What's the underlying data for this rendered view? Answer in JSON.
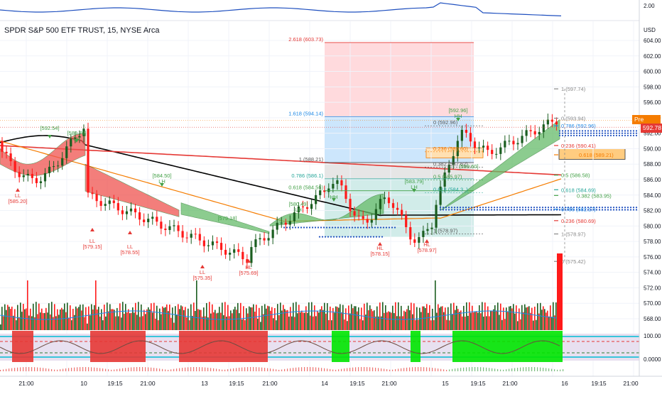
{
  "header": {
    "title": "SPDR S&P 500 ETF TRUST, 15, NYSE Arca",
    "currency": "USD",
    "top_indicator_value": "2.00"
  },
  "price_axis": {
    "ticks": [
      "604.00",
      "602.00",
      "600.00",
      "598.00",
      "596.00",
      "594.00",
      "592.00",
      "590.00",
      "588.00",
      "586.00",
      "584.00",
      "582.00",
      "580.00",
      "578.00",
      "576.00",
      "574.00",
      "572.00",
      "570.00",
      "568.00"
    ],
    "osc_ticks": [
      "100.00",
      "0.0000"
    ],
    "pre_label": "Pre",
    "pre_value": "593.68",
    "last_value": "592.78"
  },
  "time_axis": {
    "labels": [
      "21:00",
      "10",
      "19:15",
      "21:00",
      "13",
      "19:15",
      "21:00",
      "14",
      "19:15",
      "21:00",
      "15",
      "19:15",
      "21:00",
      "16",
      "19:15",
      "21:00"
    ]
  },
  "fib_left": {
    "levels": [
      {
        "label": "2.618 (603.73)",
        "color": "#e53935"
      },
      {
        "label": "1.618 (594.14)",
        "color": "#1e88e5"
      },
      {
        "label": "1 (588.21)",
        "color": "#555555"
      },
      {
        "label": "0.786 (586.1)",
        "color": "#26a69a"
      },
      {
        "label": "0.618 (584.56)",
        "color": "#43a047"
      }
    ]
  },
  "fib_right": {
    "levels": [
      {
        "label": "1 (597.74)",
        "color": "#888888"
      },
      {
        "label": "0 (593.94)",
        "color": "#888888"
      },
      {
        "label": "0.786 (592.96)",
        "color": "#1e88e5"
      },
      {
        "label": "0.236 (590.41)",
        "color": "#e53935"
      },
      {
        "label": "0.618 (589.21)",
        "color": "#f57c00"
      },
      {
        "label": "0.5 (586.58)",
        "color": "#43a047"
      },
      {
        "label": "0.618 (584.69)",
        "color": "#26a69a"
      },
      {
        "label": "0.382 (583.95)",
        "color": "#43a047"
      },
      {
        "label": "0.786 (582.17)",
        "color": "#1e88e5"
      },
      {
        "label": "0.236 (580.69)",
        "color": "#e53935"
      },
      {
        "label": "1 (578.97)",
        "color": "#888888"
      },
      {
        "label": "0 (575.42)",
        "color": "#888888"
      }
    ]
  },
  "fib_mid": {
    "levels": [
      {
        "label": "0 (592.96)",
        "color": "#555555"
      },
      {
        "label": "0.236 (589.60)",
        "color": "#f57c00"
      },
      {
        "label": "0.382 (587.62)",
        "color": "#555555"
      },
      {
        "label": "0.5 (585.97)",
        "color": "#43a047"
      },
      {
        "label": "0.618 (584.3..)",
        "color": "#26a69a"
      },
      {
        "label": "1 (578.97)",
        "color": "#555555"
      }
    ]
  },
  "annotations": [
    {
      "text": "[592.54]",
      "color": "#43a047"
    },
    {
      "text": "[589.78]",
      "color": "#43a047"
    },
    {
      "text": "LH",
      "color": "#43a047"
    },
    {
      "text": "[584.50]",
      "color": "#43a047"
    },
    {
      "text": "LH",
      "color": "#43a047"
    },
    {
      "text": "[579.18]",
      "color": "#43a047"
    },
    {
      "text": "[580.49]",
      "color": "#43a047"
    },
    {
      "text": "LH",
      "color": "#43a047"
    },
    {
      "text": "HH",
      "color": "#43a047"
    },
    {
      "text": "[583.79]",
      "color": "#43a047"
    },
    {
      "text": "LH",
      "color": "#43a047"
    },
    {
      "text": "[592.96]",
      "color": "#43a047"
    },
    {
      "text": "HH",
      "color": "#43a047"
    },
    {
      "text": "[589.60]",
      "color": "#43a047"
    },
    {
      "text": "[585.20]",
      "color": "#e53935"
    },
    {
      "text": "LL",
      "color": "#e53935"
    },
    {
      "text": "[579.15]",
      "color": "#e53935"
    },
    {
      "text": "LL",
      "color": "#e53935"
    },
    {
      "text": "[578.55]",
      "color": "#e53935"
    },
    {
      "text": "LL",
      "color": "#e53935"
    },
    {
      "text": "[575.35]",
      "color": "#e53935"
    },
    {
      "text": "LL",
      "color": "#e53935"
    },
    {
      "text": "[575.69]",
      "color": "#e53935"
    },
    {
      "text": "HL",
      "color": "#e53935"
    },
    {
      "text": "[578.15]",
      "color": "#e53935"
    },
    {
      "text": "HL",
      "color": "#e53935"
    },
    {
      "text": "[578.97]",
      "color": "#e53935"
    },
    {
      "text": "HL",
      "color": "#e53935"
    },
    {
      "text": "584.50)",
      "color": "#43a047"
    },
    {
      "text": "1.88)",
      "color": "#43a047"
    }
  ],
  "colors": {
    "up": "#1b5e20",
    "down": "#ff1a1a",
    "ma_black": "#000000",
    "ma_red": "#e53935",
    "ma_orange": "#f57c00",
    "cloud_green": "#66bb6a",
    "cloud_red": "#ef5350",
    "osc_red": "#e53935",
    "osc_green": "#00e600",
    "osc_bg": "#e8e0f0",
    "top_line": "#1e4fbf"
  }
}
